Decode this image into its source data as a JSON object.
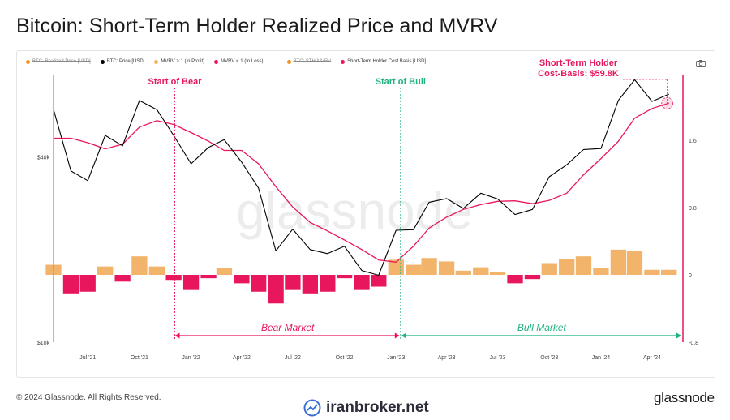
{
  "title": "Bitcoin: Short-Term Holder Realized Price and MVRV",
  "legend": [
    {
      "label": "BTC: Realized Price [USD]",
      "color": "#f7931a",
      "shape": "dot",
      "disabled": true
    },
    {
      "label": "BTC: Price [USD]",
      "color": "#000000",
      "shape": "dot",
      "disabled": false
    },
    {
      "label": "MVRV > 1 (In Profit)",
      "color": "#f2b36b",
      "shape": "dot",
      "disabled": false
    },
    {
      "label": "MVRV < 1 (In Loss)",
      "color": "#e8175d",
      "shape": "dot",
      "disabled": false
    },
    {
      "label": "-",
      "color": "#999999",
      "shape": "dash",
      "disabled": false
    },
    {
      "label": "BTC: STH-MVRV",
      "color": "#f7931a",
      "shape": "dot",
      "disabled": true
    },
    {
      "label": "Short-Term Holder Cost Basis [USD]",
      "color": "#e8175d",
      "shape": "dot",
      "disabled": false
    }
  ],
  "annotations": {
    "start_bear": "Start of Bear",
    "start_bull": "Start of Bull",
    "sth_line1": "Short-Term Holder",
    "sth_line2": "Cost-Basis: $59.8K",
    "bear_market": "Bear Market",
    "bull_market": "Bull Market"
  },
  "watermark": "glassnode",
  "footer": {
    "copyright": "© 2024 Glassnode. All Rights Reserved.",
    "logo": "glassnode",
    "site": "iranbroker.net"
  },
  "colors": {
    "price": "#000000",
    "cost_basis": "#e8175d",
    "profit": "#f2b36b",
    "loss": "#e8175d",
    "bull": "#1fb27d",
    "bear": "#e8175d",
    "orange_axis": "#f7931a"
  },
  "chart_data": {
    "type": "line",
    "x_tick_labels": [
      "Jul '21",
      "Oct '21",
      "Jan '22",
      "Apr '22",
      "Jul '22",
      "Oct '22",
      "Jan '23",
      "Apr '23",
      "Jul '23",
      "Oct '23",
      "Jan '24",
      "Apr '24"
    ],
    "left_axis": {
      "scale": "log",
      "tick_labels": [
        "$40k",
        "$10k"
      ],
      "range": [
        10000,
        75000
      ]
    },
    "right_axis": {
      "tick_labels": [
        "1.6",
        "0.8",
        "0",
        "-0.8"
      ],
      "range": [
        -0.8,
        2.4
      ]
    },
    "dates": [
      "2021-05-01",
      "2021-06-01",
      "2021-07-01",
      "2021-08-01",
      "2021-09-01",
      "2021-10-01",
      "2021-11-01",
      "2021-12-01",
      "2022-01-01",
      "2022-02-01",
      "2022-03-01",
      "2022-04-01",
      "2022-05-01",
      "2022-06-01",
      "2022-07-01",
      "2022-08-01",
      "2022-09-01",
      "2022-10-01",
      "2022-11-01",
      "2022-12-01",
      "2023-01-01",
      "2023-02-01",
      "2023-03-01",
      "2023-04-01",
      "2023-05-01",
      "2023-06-01",
      "2023-07-01",
      "2023-08-01",
      "2023-09-01",
      "2023-10-01",
      "2023-11-01",
      "2023-12-01",
      "2024-01-01",
      "2024-02-01",
      "2024-03-01",
      "2024-04-01",
      "2024-05-01"
    ],
    "series": [
      {
        "name": "BTC: Price [USD]",
        "values": [
          57000,
          36000,
          33500,
          47000,
          43500,
          61000,
          57000,
          47000,
          38000,
          43000,
          45500,
          38500,
          31700,
          19800,
          23300,
          20000,
          19400,
          20500,
          17100,
          16500,
          23100,
          23200,
          28500,
          29300,
          27200,
          30500,
          29200,
          26000,
          27000,
          34500,
          37700,
          42300,
          42600,
          61100,
          71300,
          60600,
          64000
        ]
      },
      {
        "name": "Short-Term Holder Cost Basis [USD]",
        "values": [
          46000,
          46000,
          44500,
          42500,
          44000,
          50000,
          52500,
          51000,
          48000,
          45000,
          42000,
          42000,
          38000,
          32000,
          27500,
          24500,
          23000,
          21500,
          20000,
          18500,
          18200,
          20500,
          23500,
          25500,
          27000,
          28000,
          28700,
          28800,
          28200,
          28900,
          30500,
          35000,
          39500,
          45000,
          53500,
          57500,
          59800
        ]
      },
      {
        "name": "MVRV > 1 (In Profit)",
        "values": [
          0.12,
          0,
          0,
          0.1,
          0,
          0.22,
          0.1,
          0,
          0,
          0,
          0.08,
          0,
          0,
          0,
          0,
          0,
          0,
          0,
          0,
          0,
          0.18,
          0.12,
          0.2,
          0.16,
          0.05,
          0.09,
          0.03,
          0,
          0,
          0.14,
          0.19,
          0.22,
          0.08,
          0.3,
          0.28,
          0.06,
          0.06
        ]
      },
      {
        "name": "MVRV < 1 (In Loss)",
        "values": [
          0,
          -0.22,
          -0.2,
          0,
          -0.08,
          0,
          0,
          -0.06,
          -0.18,
          -0.04,
          0,
          -0.1,
          -0.2,
          -0.34,
          -0.18,
          -0.22,
          -0.2,
          -0.04,
          -0.18,
          -0.14,
          0,
          0,
          0,
          0,
          0,
          0,
          0,
          -0.1,
          -0.05,
          0,
          0,
          0,
          0,
          0,
          0,
          0,
          0
        ]
      }
    ],
    "vlines": [
      {
        "label": "Start of Bear",
        "date": "2021-12-03",
        "color": "#e8175d"
      },
      {
        "label": "Start of Bull",
        "date": "2023-01-09",
        "color": "#1fb27d"
      },
      {
        "label": "Short-Term Holder Cost-Basis: $59.8K",
        "date": "2024-05-01",
        "color": "#e8175d"
      }
    ],
    "ranges": [
      {
        "label": "Bear Market",
        "from": "2021-12-03",
        "to": "2023-01-09"
      },
      {
        "label": "Bull Market",
        "from": "2023-01-09",
        "to": "2024-05-01"
      }
    ],
    "grid": false,
    "legend_position": "top-left"
  }
}
